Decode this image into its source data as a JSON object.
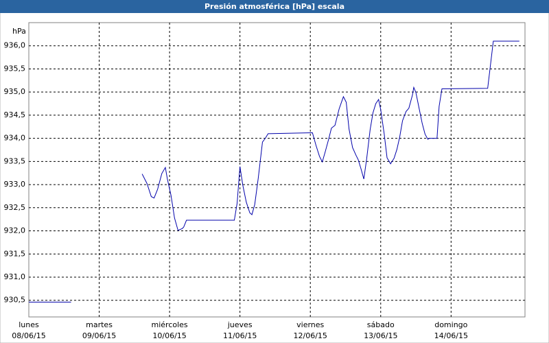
{
  "chart_data": {
    "type": "line",
    "title": "Presión atmosférica [hPa] escala",
    "y_label": "hPa",
    "xlim": [
      0,
      7.05
    ],
    "ylim": [
      930.14,
      936.5
    ],
    "grid": true,
    "xticks": [
      {
        "value": 0,
        "label": "lunes"
      },
      {
        "value": 1,
        "label": "martes"
      },
      {
        "value": 2,
        "label": "miércoles"
      },
      {
        "value": 3,
        "label": "jueves"
      },
      {
        "value": 4,
        "label": "viernes"
      },
      {
        "value": 5,
        "label": "sábado"
      },
      {
        "value": 6,
        "label": "domingo"
      }
    ],
    "xtick_dates": [
      "08/06/15",
      "09/06/15",
      "10/06/15",
      "11/06/15",
      "12/06/15",
      "13/06/15",
      "14/06/15"
    ],
    "yticks": [
      {
        "value": 930.5,
        "label": "930,5"
      },
      {
        "value": 931,
        "label": "931,0"
      },
      {
        "value": 931.5,
        "label": "931,5"
      },
      {
        "value": 932,
        "label": "932,0"
      },
      {
        "value": 932.5,
        "label": "932,5"
      },
      {
        "value": 933,
        "label": "933,0"
      },
      {
        "value": 933.5,
        "label": "933,5"
      },
      {
        "value": 934,
        "label": "934,0"
      },
      {
        "value": 934.5,
        "label": "934,5"
      },
      {
        "value": 935,
        "label": "935,0"
      },
      {
        "value": 935.5,
        "label": "935,5"
      },
      {
        "value": 936,
        "label": "936,0"
      }
    ],
    "series": [
      {
        "color": "#0000aa",
        "x": [
          0,
          0.6,
          null,
          1.61,
          1.68,
          1.74,
          1.78,
          1.83,
          1.89,
          1.94,
          1.97,
          2.02,
          2.07,
          2.12,
          2.18,
          2.2,
          2.24,
          2.92,
          2.96,
          3.0,
          3.04,
          3.09,
          3.14,
          3.17,
          3.21,
          3.26,
          3.32,
          3.36,
          3.4,
          4.03,
          4.08,
          4.13,
          4.17,
          4.21,
          4.26,
          4.3,
          4.35,
          4.41,
          4.47,
          4.51,
          4.55,
          4.6,
          4.65,
          4.68,
          4.72,
          4.76,
          4.8,
          4.85,
          4.89,
          4.93,
          4.97,
          5.0,
          5.05,
          5.09,
          5.14,
          5.19,
          5.23,
          5.27,
          5.31,
          5.36,
          5.4,
          5.45,
          5.47,
          5.5,
          5.54,
          5.59,
          5.63,
          5.67,
          5.69,
          5.8,
          5.83,
          5.87,
          6.52,
          6.6,
          6.97
        ],
        "values": [
          930.46,
          930.46,
          null,
          933.23,
          933.02,
          932.74,
          932.71,
          932.9,
          933.24,
          933.37,
          933.11,
          932.77,
          932.28,
          932.01,
          932.05,
          932.08,
          932.23,
          932.23,
          932.6,
          933.39,
          932.99,
          932.62,
          932.39,
          932.35,
          932.57,
          933.14,
          933.92,
          934.0,
          934.1,
          934.12,
          933.85,
          933.61,
          933.49,
          933.7,
          933.98,
          934.22,
          934.28,
          934.64,
          934.9,
          934.78,
          934.2,
          933.8,
          933.63,
          933.54,
          933.34,
          933.12,
          933.55,
          934.19,
          934.55,
          934.75,
          934.84,
          934.62,
          934.09,
          933.58,
          933.45,
          933.57,
          933.76,
          934.03,
          934.38,
          934.58,
          934.65,
          934.93,
          935.1,
          934.99,
          934.69,
          934.32,
          934.09,
          933.98,
          934.0,
          934.0,
          934.69,
          935.07,
          935.08,
          936.1,
          936.1
        ]
      }
    ]
  }
}
